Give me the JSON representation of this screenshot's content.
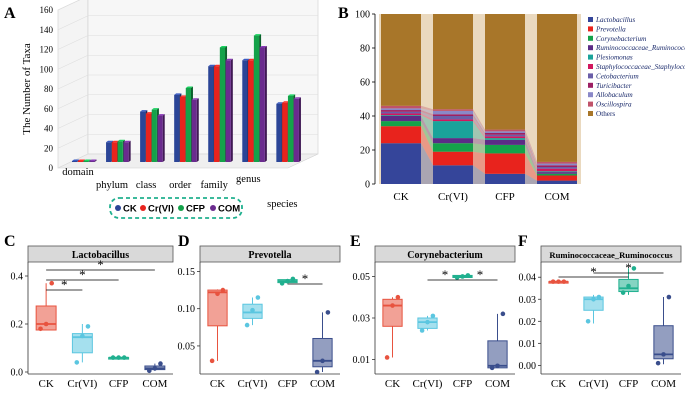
{
  "panel_letters": [
    "A",
    "B",
    "C",
    "D",
    "E",
    "F"
  ],
  "colors": {
    "CK": "#2b4597",
    "CrVI": "#e8231d",
    "CFP": "#14a24a",
    "COM": "#6a2b8e",
    "Lactobacillus": "#35459a",
    "Prevotella": "#e8231d",
    "Corynebacterium": "#14a24a",
    "Ruminococcaceae_Ruminococcus": "#5b2c86",
    "Plesiomonas": "#1aa39a",
    "Staphylococcaceae_Staphylococcus": "#d1175e",
    "Cetobacterium": "#6a5ea8",
    "Turicibacter": "#9d1f63",
    "Allobaculum": "#8a88c8",
    "Oscillospira": "#c0536a",
    "Others": "#a87629",
    "box_CK": "#e8533f",
    "box_CrVI": "#5bc6e0",
    "box_CFP": "#20b08f",
    "box_COM": "#3a4e8c",
    "legend_border": "#20b08f"
  },
  "chart_data": [
    {
      "id": "A",
      "type": "bar",
      "style": "3d-grouped",
      "title": "",
      "ylabel": "The Number of Taxa",
      "xlabel": "",
      "ylim": [
        0,
        160
      ],
      "yticks": [
        0,
        20,
        40,
        60,
        80,
        100,
        120,
        140,
        160
      ],
      "categories": [
        "domain",
        "phylum",
        "class",
        "order",
        "family",
        "genus",
        "species"
      ],
      "category_labels": [
        "domain",
        "phylum",
        "class",
        "order",
        "family",
        "genus",
        "species"
      ],
      "series": [
        {
          "name": "CK",
          "values": [
            1,
            20,
            51,
            68,
            97,
            103,
            59
          ]
        },
        {
          "name": "Cr(VI)",
          "values": [
            1,
            20,
            49,
            66,
            97,
            103,
            60
          ]
        },
        {
          "name": "CFP",
          "values": [
            1,
            21,
            53,
            75,
            116,
            128,
            67
          ]
        },
        {
          "name": "COM",
          "values": [
            1,
            20,
            47,
            63,
            103,
            116,
            64
          ]
        }
      ],
      "legend": [
        "CK",
        "Cr(VI)",
        "CFP",
        "COM"
      ],
      "legend_position": "bottom"
    },
    {
      "id": "B",
      "type": "bar",
      "style": "stacked-100",
      "title": "",
      "ylabel": "",
      "xlabel": "",
      "ylim": [
        0,
        100
      ],
      "yticks": [
        0,
        20,
        40,
        60,
        80,
        100
      ],
      "categories": [
        "CK",
        "Cr(VI)",
        "CFP",
        "COM"
      ],
      "series": [
        {
          "name": "Lactobacillus",
          "values": [
            24,
            11,
            6,
            2
          ]
        },
        {
          "name": "Prevotella",
          "values": [
            10,
            8,
            12,
            3
          ]
        },
        {
          "name": "Corynebacterium",
          "values": [
            3,
            5,
            5,
            1
          ]
        },
        {
          "name": "Ruminococcaceae_Ruminococcus",
          "values": [
            3,
            3,
            3,
            1
          ]
        },
        {
          "name": "Plesiomonas",
          "values": [
            0.5,
            10,
            1,
            0.5
          ]
        },
        {
          "name": "Staphylococcaceae_Staphylococcus",
          "values": [
            1,
            1,
            1,
            1.5
          ]
        },
        {
          "name": "Cetobacterium",
          "values": [
            1,
            2,
            1,
            1
          ]
        },
        {
          "name": "Turicibacter",
          "values": [
            1,
            1,
            1,
            1
          ]
        },
        {
          "name": "Allobaculum",
          "values": [
            1,
            2,
            1,
            1
          ]
        },
        {
          "name": "Oscillospira",
          "values": [
            1.5,
            1,
            1,
            1
          ]
        },
        {
          "name": "Others",
          "values": [
            54,
            56,
            68,
            87
          ]
        }
      ],
      "legend": [
        "Lactobacillus",
        "Prevotella",
        "Corynebacterium",
        "Ruminococcaceae_Ruminococcus",
        "Plesiomonas",
        "Staphylococcaceae_Staphylococcus",
        "Cetobacterium",
        "Turicibacter",
        "Allobaculum",
        "Oscillospira",
        "Others"
      ],
      "legend_position": "right"
    },
    {
      "id": "C",
      "type": "box",
      "title": "Lactobacillus",
      "ylim": [
        0,
        0.45
      ],
      "yticks": [
        0.0,
        0.2,
        0.4
      ],
      "ytick_labels": [
        "0.0",
        "0.2",
        "0.4"
      ],
      "categories": [
        "CK",
        "Cr(VI)",
        "CFP",
        "COM"
      ],
      "boxes": [
        {
          "q1": 0.175,
          "median": 0.2,
          "q3": 0.275,
          "min": 0.175,
          "max": 0.37,
          "points": [
            0.18,
            0.2,
            0.37
          ]
        },
        {
          "q1": 0.08,
          "median": 0.145,
          "q3": 0.16,
          "min": 0.04,
          "max": 0.2,
          "points": [
            0.04,
            0.15,
            0.19
          ]
        },
        {
          "q1": 0.06,
          "median": 0.06,
          "q3": 0.06,
          "min": 0.06,
          "max": 0.06,
          "points": [
            0.06,
            0.06,
            0.06
          ]
        },
        {
          "q1": 0.01,
          "median": 0.015,
          "q3": 0.025,
          "min": 0.005,
          "max": 0.035,
          "points": [
            0.005,
            0.015,
            0.035
          ]
        }
      ],
      "significance": [
        {
          "from": "CK",
          "to": "Cr(VI)",
          "label": "*"
        },
        {
          "from": "CK",
          "to": "CFP",
          "label": "*"
        },
        {
          "from": "CK",
          "to": "COM",
          "label": "*"
        }
      ]
    },
    {
      "id": "D",
      "type": "box",
      "title": "Prevotella",
      "ylim": [
        0.015,
        0.16
      ],
      "yticks": [
        0.05,
        0.1,
        0.15
      ],
      "ytick_labels": [
        "0.05",
        "0.10",
        "0.15"
      ],
      "categories": [
        "CK",
        "Cr(VI)",
        "CFP",
        "COM"
      ],
      "boxes": [
        {
          "q1": 0.077,
          "median": 0.122,
          "q3": 0.125,
          "min": 0.03,
          "max": 0.126,
          "points": [
            0.03,
            0.12,
            0.125
          ]
        },
        {
          "q1": 0.087,
          "median": 0.095,
          "q3": 0.106,
          "min": 0.078,
          "max": 0.115,
          "points": [
            0.078,
            0.098,
            0.115
          ]
        },
        {
          "q1": 0.135,
          "median": 0.137,
          "q3": 0.139,
          "min": 0.134,
          "max": 0.14,
          "points": [
            0.134,
            0.137,
            0.14
          ]
        },
        {
          "q1": 0.022,
          "median": 0.03,
          "q3": 0.06,
          "min": 0.015,
          "max": 0.095,
          "points": [
            0.015,
            0.03,
            0.095
          ]
        }
      ],
      "significance": [
        {
          "from": "CFP",
          "to": "COM",
          "label": "*"
        }
      ]
    },
    {
      "id": "E",
      "type": "box",
      "title": "Corynebacterium",
      "ylim": [
        0.004,
        0.056
      ],
      "yticks": [
        0.01,
        0.03,
        0.05
      ],
      "ytick_labels": [
        "0.01",
        "0.03",
        "0.05"
      ],
      "categories": [
        "CK",
        "Cr(VI)",
        "CFP",
        "COM"
      ],
      "boxes": [
        {
          "q1": 0.026,
          "median": 0.036,
          "q3": 0.039,
          "min": 0.011,
          "max": 0.04,
          "points": [
            0.011,
            0.036,
            0.04
          ]
        },
        {
          "q1": 0.025,
          "median": 0.028,
          "q3": 0.03,
          "min": 0.024,
          "max": 0.031,
          "points": [
            0.024,
            0.028,
            0.031
          ]
        },
        {
          "q1": 0.0495,
          "median": 0.05,
          "q3": 0.0505,
          "min": 0.0495,
          "max": 0.0505,
          "points": [
            0.0495,
            0.05,
            0.0505
          ]
        },
        {
          "q1": 0.006,
          "median": 0.007,
          "q3": 0.019,
          "min": 0.006,
          "max": 0.032,
          "points": [
            0.006,
            0.007,
            0.032
          ]
        }
      ],
      "significance": [
        {
          "from": "Cr(VI)",
          "to": "CFP",
          "label": "*"
        },
        {
          "from": "CFP",
          "to": "COM",
          "label": "*"
        }
      ]
    },
    {
      "id": "F",
      "type": "box",
      "title": "Ruminococcaceae_Ruminococcus",
      "ylim": [
        -0.003,
        0.046
      ],
      "yticks": [
        0.0,
        0.01,
        0.02,
        0.03,
        0.04
      ],
      "ytick_labels": [
        "0.00",
        "0.01",
        "0.02",
        "0.03",
        "0.04"
      ],
      "categories": [
        "CK",
        "Cr(VI)",
        "CFP",
        "COM"
      ],
      "boxes": [
        {
          "q1": 0.038,
          "median": 0.038,
          "q3": 0.038,
          "min": 0.038,
          "max": 0.038,
          "points": [
            0.038,
            0.038,
            0.038
          ]
        },
        {
          "q1": 0.025,
          "median": 0.03,
          "q3": 0.031,
          "min": 0.019,
          "max": 0.032,
          "points": [
            0.02,
            0.03,
            0.031
          ]
        },
        {
          "q1": 0.0335,
          "median": 0.035,
          "q3": 0.039,
          "min": 0.032,
          "max": 0.044,
          "points": [
            0.033,
            0.036,
            0.044
          ]
        },
        {
          "q1": 0.003,
          "median": 0.005,
          "q3": 0.018,
          "min": 0.0005,
          "max": 0.031,
          "points": [
            0.001,
            0.005,
            0.031
          ]
        }
      ],
      "significance": [
        {
          "from": "CK",
          "to": "CFP",
          "label": "*"
        },
        {
          "from": "Cr(VI)",
          "to": "COM",
          "label": "*"
        }
      ]
    }
  ]
}
